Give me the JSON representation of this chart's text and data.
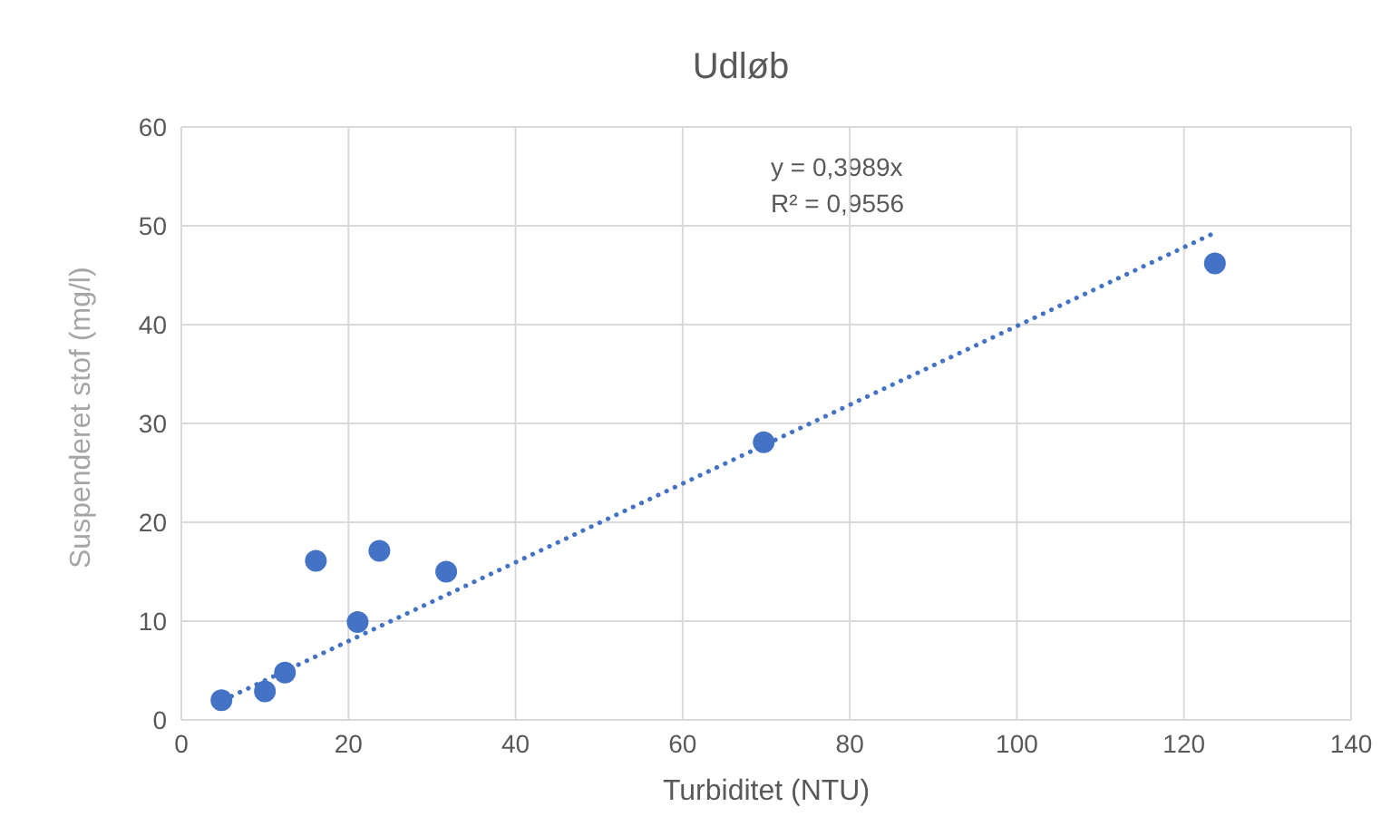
{
  "chart_data": {
    "type": "scatter",
    "title": "Udløb",
    "xlabel": "Turbiditet (NTU)",
    "ylabel": "Suspenderet stof (mg/l)",
    "xlim": [
      0,
      140
    ],
    "xticks": [
      0,
      20,
      40,
      60,
      80,
      100,
      120,
      140
    ],
    "ylim": [
      0,
      60
    ],
    "yticks": [
      0,
      10,
      20,
      30,
      40,
      50,
      60
    ],
    "grid": true,
    "legend": false,
    "annotations": [
      "y = 0,3989x",
      "R² = 0,9556"
    ],
    "series": [
      {
        "color": "#4472c4",
        "marker": "circle",
        "x": [
          4.8,
          10,
          12.4,
          16.1,
          21.1,
          23.7,
          31.7,
          69.7,
          123.7
        ],
        "values": [
          2.0,
          2.9,
          4.8,
          16.1,
          9.9,
          17.1,
          15.0,
          28.1,
          46.2
        ]
      },
      {
        "type": "line",
        "color": "#4472c4",
        "marker": "none",
        "line_style": "dotted",
        "x": [
          5,
          123.2
        ],
        "values": [
          2.0,
          49.1
        ]
      }
    ]
  }
}
